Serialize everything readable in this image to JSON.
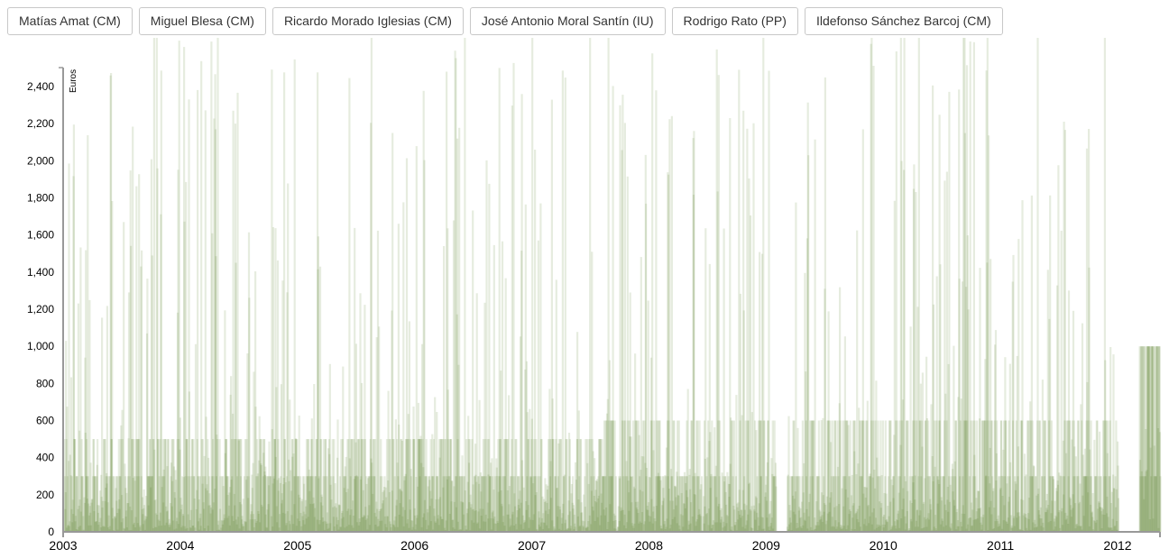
{
  "buttons": [
    {
      "label": "Matías Amat (CM)"
    },
    {
      "label": "Miguel Blesa (CM)"
    },
    {
      "label": "Ricardo Morado Iglesias (CM)"
    },
    {
      "label": "José Antonio Moral Santín (IU)"
    },
    {
      "label": "Rodrigo Rato (PP)"
    },
    {
      "label": "Ildefonso Sánchez Barcoj (CM)"
    }
  ],
  "chart_data": {
    "type": "bar",
    "title": "",
    "xlabel": "",
    "ylabel": "Euros",
    "xlim": [
      2003,
      2012.36
    ],
    "ylim": [
      0,
      2500
    ],
    "x_ticks": [
      "2003",
      "2004",
      "2005",
      "2006",
      "2007",
      "2008",
      "2009",
      "2010",
      "2011",
      "2012"
    ],
    "y_ticks": [
      "0",
      "200",
      "400",
      "600",
      "800",
      "1,000",
      "1,200",
      "1,400",
      "1,600",
      "1,800",
      "2,000",
      "2,200",
      "2,400"
    ],
    "grid": false,
    "bar_color": "#3a7009",
    "recurring_levels": [
      {
        "from": 2003.0,
        "to": 2004.4,
        "values": [
          300,
          500
        ]
      },
      {
        "from": 2004.4,
        "to": 2007.6,
        "values": [
          300,
          500
        ]
      },
      {
        "from": 2007.6,
        "to": 2012.0,
        "values": [
          300,
          600
        ]
      },
      {
        "from": 2012.18,
        "to": 2012.36,
        "values": [
          300,
          1000
        ]
      }
    ],
    "gaps": [
      [
        2009.08,
        2009.17
      ],
      [
        2012.0,
        2012.18
      ]
    ]
  }
}
